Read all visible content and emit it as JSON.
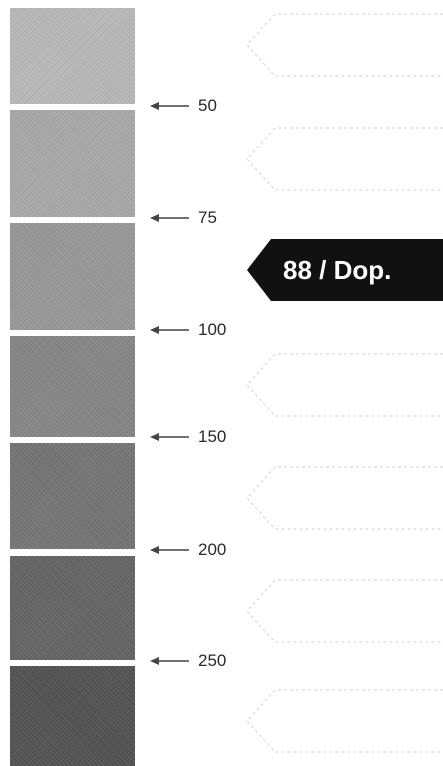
{
  "scale_labels": [
    "50",
    "75",
    "100",
    "150",
    "200",
    "250"
  ],
  "selected_label": "88 / Dop.",
  "colors": {
    "flag": "#111111",
    "flag_text": "#ffffff",
    "label_text": "#2a2a2a"
  },
  "icons": [
    "arrow-left-icon"
  ]
}
